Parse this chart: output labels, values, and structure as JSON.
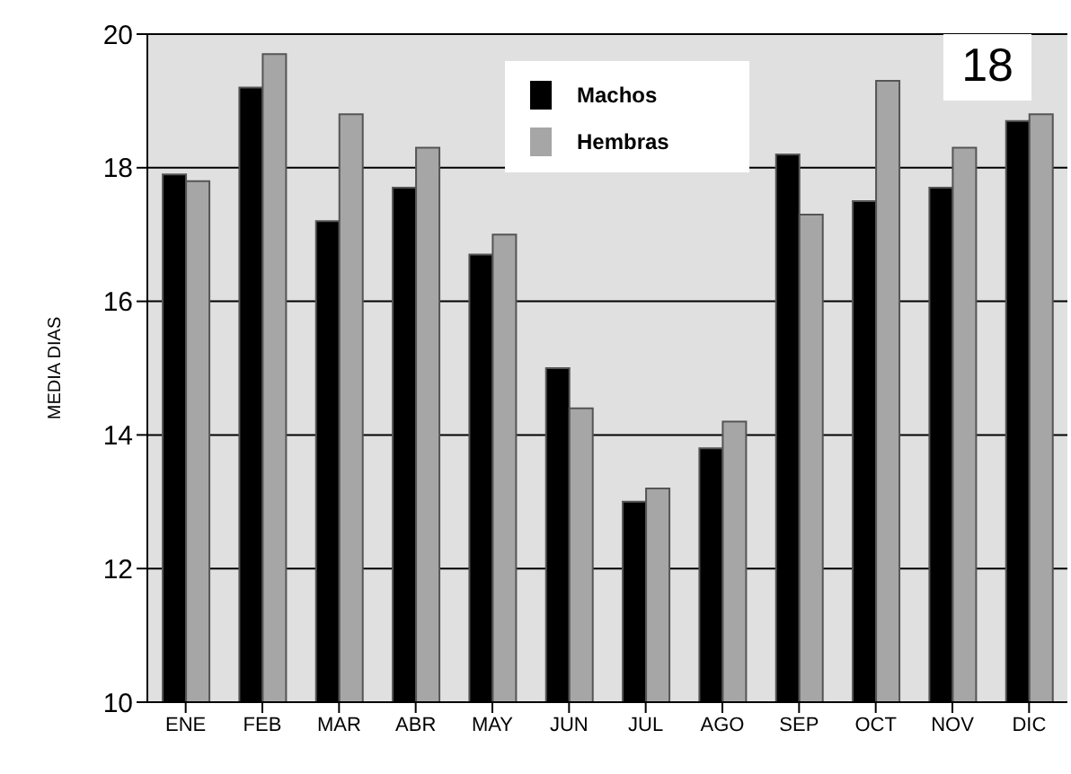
{
  "chart_data": {
    "type": "bar",
    "ylabel": "MEDIA DIAS",
    "annotations": [
      "18"
    ],
    "categories": [
      "ENE",
      "FEB",
      "MAR",
      "ABR",
      "MAY",
      "JUN",
      "JUL",
      "AGO",
      "SEP",
      "OCT",
      "NOV",
      "DIC"
    ],
    "series": [
      {
        "name": "Machos",
        "color": "#000000",
        "values": [
          17.9,
          19.2,
          17.2,
          17.7,
          16.7,
          15.0,
          13.0,
          13.8,
          18.2,
          17.5,
          17.7,
          18.7
        ]
      },
      {
        "name": "Hembras",
        "color": "#a6a6a6",
        "values": [
          17.8,
          19.7,
          18.8,
          18.3,
          17.0,
          14.4,
          13.2,
          14.2,
          17.3,
          19.3,
          18.3,
          18.8
        ]
      }
    ],
    "ylim": [
      10,
      20
    ],
    "yticks": [
      10,
      12,
      14,
      16,
      18,
      20
    ],
    "grid": "y",
    "legend": "top"
  }
}
